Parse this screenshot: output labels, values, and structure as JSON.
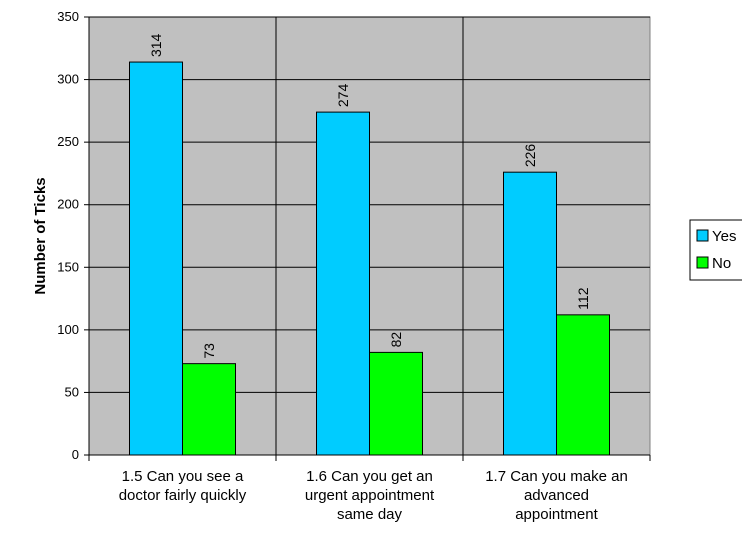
{
  "chart_data": {
    "type": "bar",
    "title": "",
    "xlabel": "",
    "ylabel": "Number of Ticks",
    "ylim": [
      0,
      350
    ],
    "yticks": [
      0,
      50,
      100,
      150,
      200,
      250,
      300,
      350
    ],
    "grid": true,
    "legend_position": "right",
    "categories": [
      [
        "1.5 Can you see a",
        "doctor fairly quickly"
      ],
      [
        "1.6 Can you get an",
        "urgent appointment",
        "same day"
      ],
      [
        "1.7 Can you make an",
        "advanced",
        "appointment"
      ]
    ],
    "series": [
      {
        "name": "Yes",
        "color": "#00ccff",
        "values": [
          314,
          274,
          226
        ]
      },
      {
        "name": "No",
        "color": "#00ff00",
        "values": [
          73,
          82,
          112
        ]
      }
    ],
    "plot_background": "#c0c0c0"
  }
}
